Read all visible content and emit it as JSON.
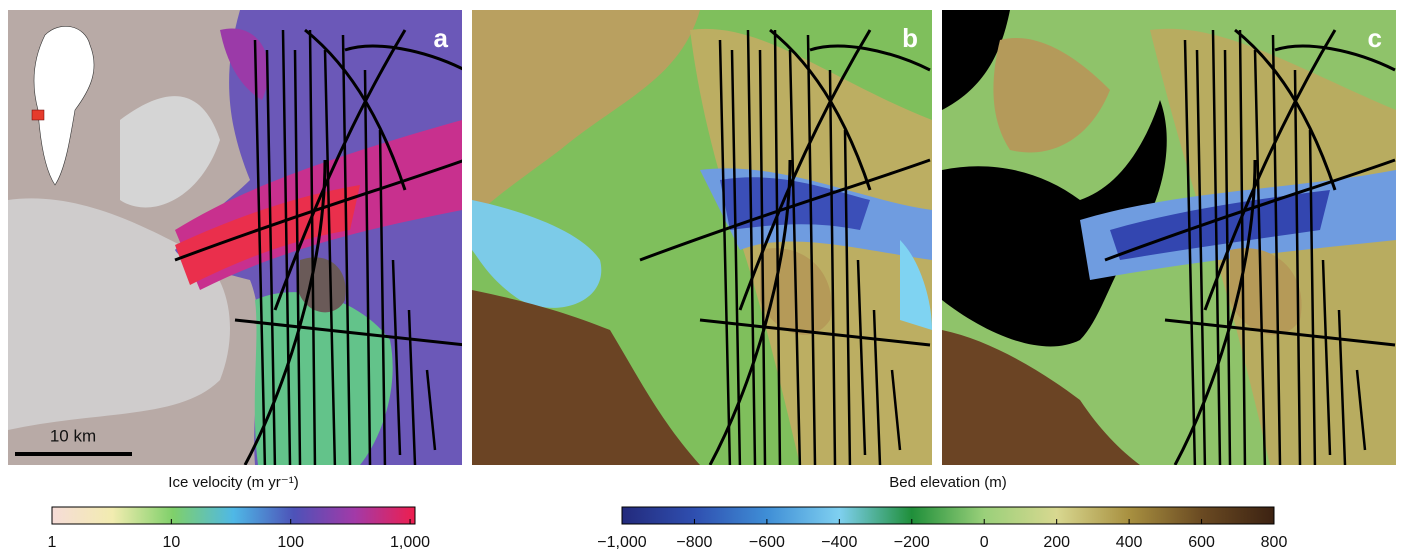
{
  "panels": [
    {
      "label": "a"
    },
    {
      "label": "b"
    },
    {
      "label": "c"
    }
  ],
  "scale_bar": "10 km",
  "colorbars": [
    {
      "title": "Ice velocity (m yr⁻¹)",
      "log": true,
      "lim": [
        1,
        1100
      ],
      "colors": [
        "#f6dcd8",
        "#f2ecb0",
        "#7fd06a",
        "#4fb8e6",
        "#4d52b8",
        "#a23aa8",
        "#ee1e4e"
      ],
      "ticks": [
        1,
        10,
        100,
        {
          "value": 1000,
          "label": "1,000"
        }
      ]
    },
    {
      "title": "Bed elevation (m)",
      "log": false,
      "lim": [
        -1000,
        800
      ],
      "colors": [
        "#232a7c",
        "#2f4fb0",
        "#3f8ed6",
        "#7fd0f0",
        "#1f8f3a",
        "#9ad07a",
        "#d8d890",
        "#a89040",
        "#6a4a22",
        "#3c2212"
      ],
      "ticks": [
        {
          "value": -1000,
          "label": "−1,000"
        },
        {
          "value": -800,
          "label": "−800"
        },
        {
          "value": -600,
          "label": "−600"
        },
        {
          "value": -400,
          "label": "−400"
        },
        {
          "value": -200,
          "label": "−200"
        },
        0,
        200,
        400,
        600,
        800
      ]
    }
  ]
}
